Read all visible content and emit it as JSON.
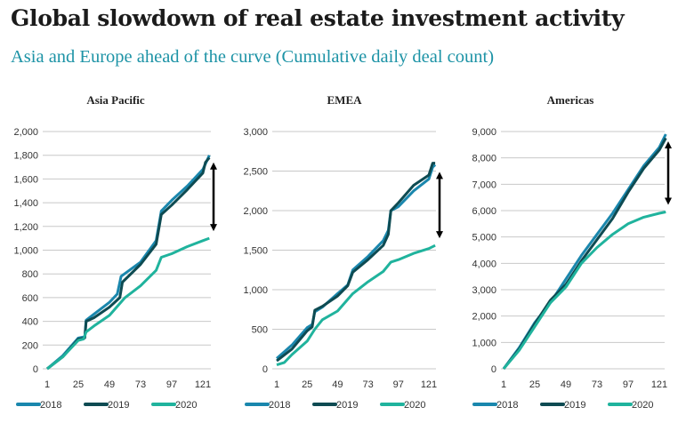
{
  "title": "Global slowdown of real estate investment activity",
  "subtitle": "Asia and Europe ahead of the curve (Cumulative daily deal count)",
  "colors": {
    "2018": "#1a87ad",
    "2019": "#0e4b52",
    "2020": "#20b39d",
    "grid": "#c8c8c8",
    "arrow": "#000000"
  },
  "chart_data": [
    {
      "type": "line",
      "title": "Asia Pacific",
      "ylim": [
        0,
        2000
      ],
      "yticks": [
        "0",
        "200",
        "400",
        "600",
        "800",
        "1,000",
        "1,200",
        "1,400",
        "1,600",
        "1,800",
        "2,000"
      ],
      "ytick_values": [
        0,
        200,
        400,
        600,
        800,
        1000,
        1200,
        1400,
        1600,
        1800,
        2000
      ],
      "xticks": [
        1,
        25,
        49,
        73,
        97,
        121
      ],
      "xlim": [
        1,
        126
      ],
      "grid": true,
      "legend": "bottom",
      "series": [
        {
          "name": "2018",
          "x": [
            1,
            13,
            25,
            30,
            31,
            37,
            49,
            55,
            58,
            73,
            85,
            89,
            97,
            109,
            121,
            126
          ],
          "y": [
            0,
            110,
            260,
            270,
            410,
            460,
            560,
            630,
            780,
            900,
            1080,
            1330,
            1420,
            1540,
            1680,
            1800
          ]
        },
        {
          "name": "2019",
          "x": [
            1,
            13,
            25,
            30,
            31,
            37,
            49,
            57,
            59,
            73,
            85,
            89,
            97,
            109,
            121,
            123,
            126
          ],
          "y": [
            0,
            100,
            250,
            260,
            400,
            430,
            520,
            600,
            730,
            880,
            1050,
            1300,
            1380,
            1510,
            1650,
            1740,
            1780
          ]
        },
        {
          "name": "2020",
          "x": [
            1,
            13,
            25,
            29,
            31,
            37,
            49,
            61,
            73,
            85,
            89,
            97,
            109,
            121,
            126
          ],
          "y": [
            0,
            100,
            240,
            250,
            310,
            360,
            450,
            600,
            700,
            830,
            940,
            970,
            1030,
            1080,
            1100
          ]
        }
      ]
    },
    {
      "type": "line",
      "title": "EMEA",
      "ylim": [
        0,
        3000
      ],
      "yticks": [
        "0",
        "500",
        "1,000",
        "1,500",
        "2,000",
        "2,500",
        "3,000"
      ],
      "ytick_values": [
        0,
        500,
        1000,
        1500,
        2000,
        2500,
        3000
      ],
      "xticks": [
        1,
        25,
        49,
        73,
        97,
        121
      ],
      "xlim": [
        1,
        126
      ],
      "grid": true,
      "legend": "bottom",
      "series": [
        {
          "name": "2018",
          "x": [
            1,
            13,
            25,
            29,
            31,
            37,
            49,
            57,
            61,
            73,
            85,
            89,
            91,
            97,
            109,
            121,
            124,
            126
          ],
          "y": [
            130,
            300,
            520,
            560,
            720,
            780,
            950,
            1060,
            1250,
            1420,
            1620,
            1750,
            2000,
            2050,
            2250,
            2400,
            2550,
            2580
          ]
        },
        {
          "name": "2019",
          "x": [
            1,
            13,
            25,
            29,
            31,
            37,
            49,
            57,
            61,
            73,
            85,
            89,
            91,
            97,
            109,
            121,
            124,
            126
          ],
          "y": [
            100,
            250,
            480,
            530,
            740,
            790,
            920,
            1050,
            1220,
            1380,
            1560,
            1700,
            2000,
            2100,
            2320,
            2450,
            2600,
            2600
          ]
        },
        {
          "name": "2020",
          "x": [
            1,
            7,
            13,
            25,
            31,
            37,
            49,
            61,
            73,
            85,
            91,
            97,
            109,
            121,
            126
          ],
          "y": [
            50,
            80,
            180,
            350,
            500,
            620,
            730,
            950,
            1100,
            1230,
            1350,
            1380,
            1460,
            1520,
            1560
          ]
        }
      ]
    },
    {
      "type": "line",
      "title": "Americas",
      "ylim": [
        0,
        9000
      ],
      "yticks": [
        "0",
        "1,000",
        "2,000",
        "3,000",
        "4,000",
        "5,000",
        "6,000",
        "7,000",
        "8,000",
        "9,000"
      ],
      "ytick_values": [
        0,
        1000,
        2000,
        3000,
        4000,
        5000,
        6000,
        7000,
        8000,
        9000
      ],
      "xticks": [
        1,
        25,
        49,
        73,
        97,
        121
      ],
      "xlim": [
        1,
        126
      ],
      "grid": true,
      "legend": "bottom",
      "series": [
        {
          "name": "2018",
          "x": [
            1,
            13,
            25,
            37,
            49,
            61,
            73,
            85,
            97,
            109,
            121,
            126
          ],
          "y": [
            0,
            800,
            1750,
            2500,
            3400,
            4300,
            5100,
            5900,
            6800,
            7700,
            8400,
            8900
          ]
        },
        {
          "name": "2019",
          "x": [
            1,
            13,
            25,
            37,
            49,
            61,
            73,
            85,
            97,
            109,
            121,
            126
          ],
          "y": [
            0,
            750,
            1700,
            2600,
            3200,
            4100,
            4900,
            5700,
            6700,
            7600,
            8300,
            8750
          ]
        },
        {
          "name": "2020",
          "x": [
            1,
            13,
            25,
            37,
            49,
            61,
            73,
            85,
            97,
            109,
            121,
            126
          ],
          "y": [
            0,
            700,
            1600,
            2500,
            3100,
            4000,
            4600,
            5100,
            5500,
            5750,
            5900,
            5950
          ]
        }
      ]
    }
  ]
}
